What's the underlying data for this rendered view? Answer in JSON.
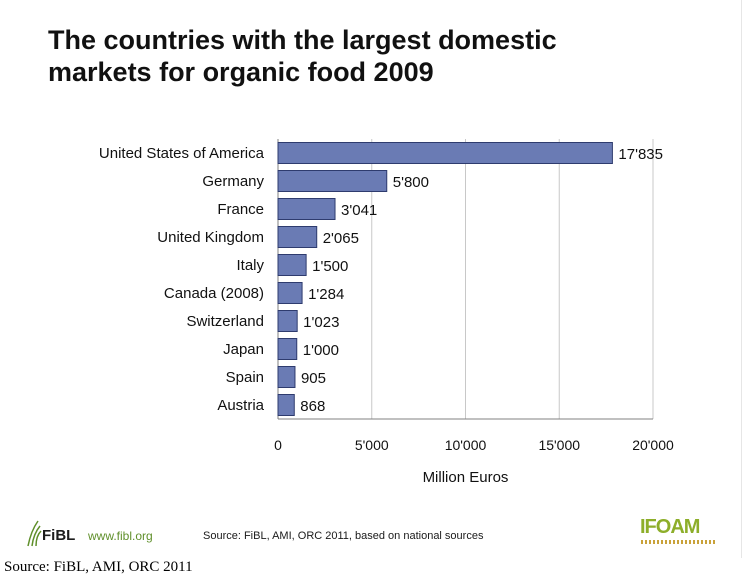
{
  "title_line1": "The countries with the largest domestic",
  "title_line2": "markets for organic food  2009",
  "chart_data": {
    "type": "bar",
    "orientation": "horizontal",
    "title": "The countries with the largest domestic markets for organic food  2009",
    "categories": [
      "United States of America",
      "Germany",
      "France",
      "United Kingdom",
      "Italy",
      "Canada (2008)",
      "Switzerland",
      "Japan",
      "Spain",
      "Austria"
    ],
    "values": [
      17835,
      5800,
      3041,
      2065,
      1500,
      1284,
      1023,
      1000,
      905,
      868
    ],
    "value_labels": [
      "17'835",
      "5'800",
      "3'041",
      "2'065",
      "1'500",
      "1'284",
      "1'023",
      "1'000",
      "905",
      "868"
    ],
    "xlabel": "Million Euros",
    "ylabel": "",
    "xlim": [
      0,
      20000
    ],
    "xticks": [
      0,
      5000,
      10000,
      15000,
      20000
    ],
    "xtick_labels": [
      "0",
      "5'000",
      "10'000",
      "15'000",
      "20'000"
    ],
    "grid": true,
    "bar_color": "#6a7bb4",
    "bar_edge_color": "#2e3b6e"
  },
  "footer": {
    "fibl_brand": "FiBL",
    "fibl_url": "www.fibl.org",
    "source_note": "Source: FiBL, AMI, ORC  2011, based on national sources",
    "ifoam_brand": "IFOAM"
  },
  "caption": "Source: FiBL, AMI, ORC 2011"
}
